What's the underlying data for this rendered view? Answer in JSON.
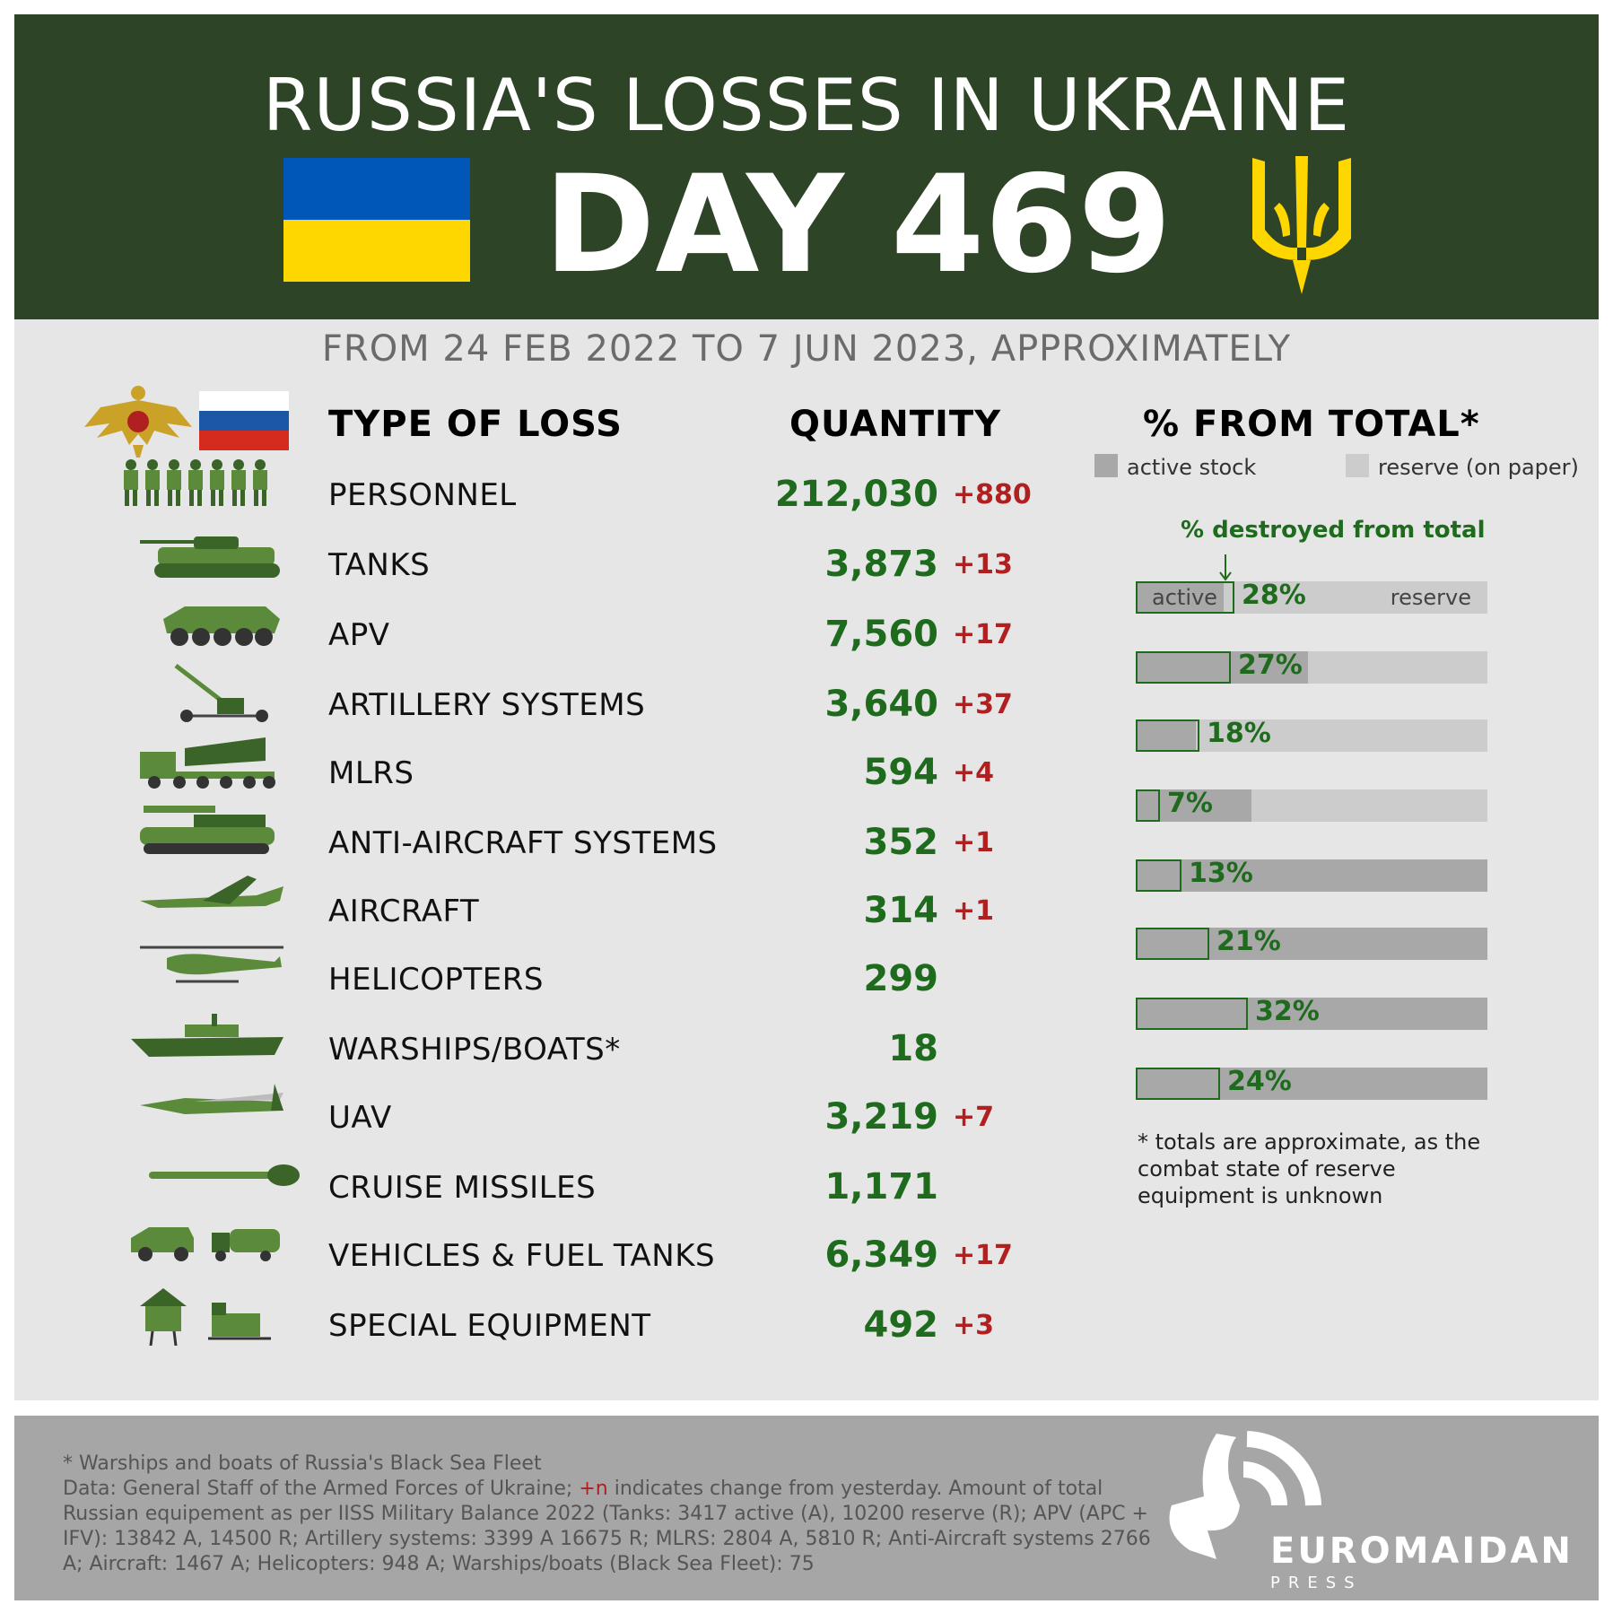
{
  "header": {
    "title": "RUSSIA'S LOSSES IN UKRAINE",
    "day": "DAY 469",
    "flag_colors": [
      "#0057b7",
      "#ffd700"
    ],
    "trident_icon": "tryzub-icon",
    "background": "#2e4427"
  },
  "date_range": "FROM 24 FEB 2022 TO 7 JUN 2023, APPROXIMATELY",
  "columns": {
    "type": "TYPE OF LOSS",
    "quantity": "QUANTITY",
    "percent": "% FROM TOTAL*"
  },
  "legend": {
    "active": "active stock",
    "reserve": "reserve (on paper)"
  },
  "destroyed_note": "% destroyed from total",
  "bar_labels": {
    "active": "active",
    "reserve": "reserve"
  },
  "footnote": "* totals are approximate, as the combat state of reserve equipment is unknown",
  "chart_data": {
    "type": "table",
    "rows": [
      {
        "label": "PERSONNEL",
        "quantity": "212,030",
        "delta": "+880",
        "icon": "soldiers-icon"
      },
      {
        "label": "TANKS",
        "quantity": "3,873",
        "delta": "+13",
        "icon": "tank-icon",
        "pct": "28%",
        "pct_value": 28,
        "active_share": 25
      },
      {
        "label": "APV",
        "quantity": "7,560",
        "delta": "+17",
        "icon": "apc-icon",
        "pct": "27%",
        "pct_value": 27,
        "active_share": 49
      },
      {
        "label": "ARTILLERY SYSTEMS",
        "quantity": "3,640",
        "delta": "+37",
        "icon": "artillery-icon",
        "pct": "18%",
        "pct_value": 18,
        "active_share": 17
      },
      {
        "label": "MLRS",
        "quantity": "594",
        "delta": "+4",
        "icon": "mlrs-icon",
        "pct": "7%",
        "pct_value": 7,
        "active_share": 33
      },
      {
        "label": "ANTI-AIRCRAFT SYSTEMS",
        "quantity": "352",
        "delta": "+1",
        "icon": "anti-aircraft-icon",
        "pct": "13%",
        "pct_value": 13,
        "active_share": 100
      },
      {
        "label": "AIRCRAFT",
        "quantity": "314",
        "delta": "+1",
        "icon": "aircraft-icon",
        "pct": "21%",
        "pct_value": 21,
        "active_share": 100
      },
      {
        "label": "HELICOPTERS",
        "quantity": "299",
        "delta": "",
        "icon": "helicopter-icon",
        "pct": "32%",
        "pct_value": 32,
        "active_share": 100
      },
      {
        "label": "WARSHIPS/BOATS*",
        "quantity": "18",
        "delta": "",
        "icon": "warship-icon",
        "pct": "24%",
        "pct_value": 24,
        "active_share": 100
      },
      {
        "label": "UAV",
        "quantity": "3,219",
        "delta": "+7",
        "icon": "uav-icon"
      },
      {
        "label": "CRUISE MISSILES",
        "quantity": "1,171",
        "delta": "",
        "icon": "cruise-missile-icon"
      },
      {
        "label": "VEHICLES & FUEL TANKS",
        "quantity": "6,349",
        "delta": "+17",
        "icon": "vehicle-icon"
      },
      {
        "label": "SPECIAL EQUIPMENT",
        "quantity": "492",
        "delta": "+3",
        "icon": "special-equipment-icon"
      }
    ],
    "colors": {
      "quantity": "#1e6b1e",
      "delta": "#b02020",
      "active": "#a8a8a8",
      "reserve": "#cccccc",
      "destroyed_border": "#1e6b1e"
    }
  },
  "footer": {
    "line1": "* Warships and boats of Russia's Black Sea Fleet",
    "line2_a": "Data: General Staff of the Armed Forces of Ukraine; ",
    "line2_plusn": "+n",
    "line2_b": " indicates change from yesterday. Amount of total Russian equipement as per IISS Military Balance 2022 (Tanks: 3417 active (A), 10200 reserve (R); APV (APC + IFV): 13842 A, 14500 R; Artillery systems: 3399 A 16675 R; MLRS: 2804 A, 5810 R; Anti-Aircraft systems 2766 A; Aircraft: 1467 A; Helicopters: 948 A; Warships/boats (Black Sea Fleet): 75",
    "logo_name": "EUROMAIDAN",
    "logo_sub": "PRESS"
  }
}
